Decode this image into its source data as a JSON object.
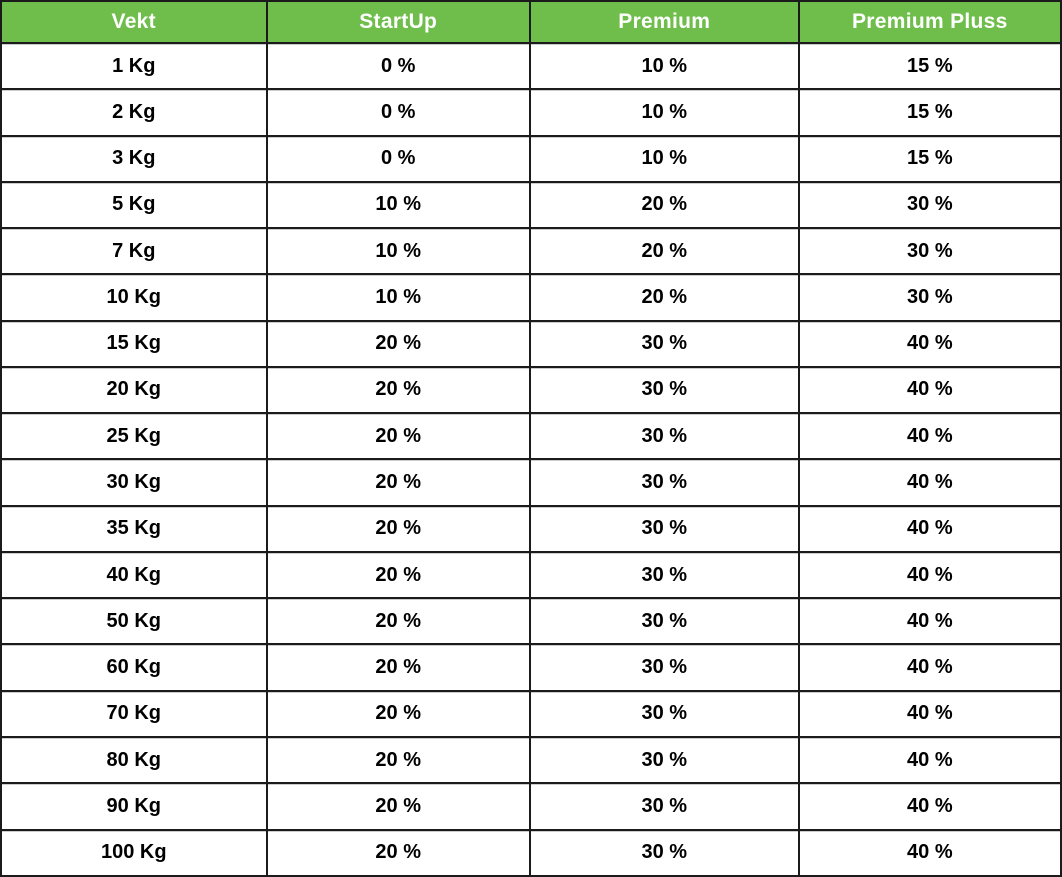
{
  "colors": {
    "header_bg": "#6FBE4B",
    "header_text": "#FFFFFF",
    "body_bg": "#FFFFFF",
    "body_text": "#000000",
    "border": "#1B1B1B",
    "inner_highlight": "#CCCCCC"
  },
  "table": {
    "columns": [
      "Vekt",
      "StartUp",
      "Premium",
      "Premium Pluss"
    ],
    "rows": [
      [
        "1 Kg",
        "0 %",
        "10 %",
        "15 %"
      ],
      [
        "2 Kg",
        "0 %",
        "10 %",
        "15 %"
      ],
      [
        "3 Kg",
        "0 %",
        "10 %",
        "15 %"
      ],
      [
        "5 Kg",
        "10 %",
        "20 %",
        "30 %"
      ],
      [
        "7 Kg",
        "10 %",
        "20 %",
        "30 %"
      ],
      [
        "10 Kg",
        "10 %",
        "20 %",
        "30 %"
      ],
      [
        "15 Kg",
        "20 %",
        "30 %",
        "40 %"
      ],
      [
        "20 Kg",
        "20 %",
        "30 %",
        "40 %"
      ],
      [
        "25 Kg",
        "20 %",
        "30 %",
        "40 %"
      ],
      [
        "30 Kg",
        "20 %",
        "30 %",
        "40 %"
      ],
      [
        "35 Kg",
        "20 %",
        "30 %",
        "40 %"
      ],
      [
        "40 Kg",
        "20 %",
        "30 %",
        "40 %"
      ],
      [
        "50 Kg",
        "20 %",
        "30 %",
        "40 %"
      ],
      [
        "60 Kg",
        "20 %",
        "30 %",
        "40 %"
      ],
      [
        "70 Kg",
        "20 %",
        "30 %",
        "40 %"
      ],
      [
        "80 Kg",
        "20 %",
        "30 %",
        "40 %"
      ],
      [
        "90 Kg",
        "20 %",
        "30 %",
        "40 %"
      ],
      [
        "100 Kg",
        "20 %",
        "30 %",
        "40 %"
      ]
    ]
  },
  "chart_data": {
    "type": "table",
    "title": "",
    "columns": [
      "Vekt",
      "StartUp",
      "Premium",
      "Premium Pluss"
    ],
    "rows": [
      [
        "1 Kg",
        "0 %",
        "10 %",
        "15 %"
      ],
      [
        "2 Kg",
        "0 %",
        "10 %",
        "15 %"
      ],
      [
        "3 Kg",
        "0 %",
        "10 %",
        "15 %"
      ],
      [
        "5 Kg",
        "10 %",
        "20 %",
        "30 %"
      ],
      [
        "7 Kg",
        "10 %",
        "20 %",
        "30 %"
      ],
      [
        "10 Kg",
        "10 %",
        "20 %",
        "30 %"
      ],
      [
        "15 Kg",
        "20 %",
        "30 %",
        "40 %"
      ],
      [
        "20 Kg",
        "20 %",
        "30 %",
        "40 %"
      ],
      [
        "25 Kg",
        "20 %",
        "30 %",
        "40 %"
      ],
      [
        "30 Kg",
        "20 %",
        "30 %",
        "40 %"
      ],
      [
        "35 Kg",
        "20 %",
        "30 %",
        "40 %"
      ],
      [
        "40 Kg",
        "20 %",
        "30 %",
        "40 %"
      ],
      [
        "50 Kg",
        "20 %",
        "30 %",
        "40 %"
      ],
      [
        "60 Kg",
        "20 %",
        "30 %",
        "40 %"
      ],
      [
        "70 Kg",
        "20 %",
        "30 %",
        "40 %"
      ],
      [
        "80 Kg",
        "20 %",
        "30 %",
        "40 %"
      ],
      [
        "90 Kg",
        "20 %",
        "30 %",
        "40 %"
      ],
      [
        "100 Kg",
        "20 %",
        "30 %",
        "40 %"
      ]
    ]
  }
}
